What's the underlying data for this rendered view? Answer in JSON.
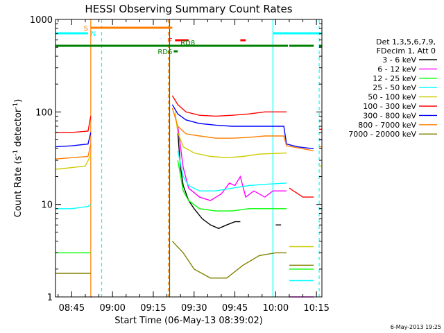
{
  "chart_data": {
    "type": "line",
    "title": "HESSI Observing Summary Count Rates",
    "xlabel": "Start Time (06-May-13 08:39:02)",
    "ylabel_main": "Count Rate (s",
    "ylabel_sup1": "-1",
    "ylabel_mid": " detector",
    "ylabel_sup2": "-1",
    "ylabel_end": ")",
    "yscale": "log",
    "ylim": [
      1,
      1000
    ],
    "xlim": [
      "08:39:02",
      "10:17:00"
    ],
    "xticks": [
      "08:45",
      "09:00",
      "09:15",
      "09:30",
      "09:45",
      "10:00",
      "10:15"
    ],
    "yticks": [
      "1",
      "10",
      "100",
      "1000"
    ],
    "timestamp": "6-May-2013 19:25",
    "legend_header": [
      "Det 1,3,5,6,7,9,",
      "FDecim 1, Att 0"
    ],
    "flags": [
      {
        "label": "S",
        "color": "#ff7f00",
        "segments": [
          [
            "08:52:00",
            "09:22:00"
          ]
        ]
      },
      {
        "label": "N",
        "color": "#00ffff",
        "segments": [
          [
            "08:39:02",
            "08:51:00"
          ],
          [
            "09:59:00",
            "10:17:00"
          ]
        ]
      },
      {
        "label": "F",
        "color": "#ff0000",
        "segments": [
          [
            "09:23:00",
            "09:28:00"
          ],
          [
            "09:47:00",
            "09:49:00"
          ]
        ]
      },
      {
        "label": "RD8",
        "color": "#008000",
        "segments": [
          [
            "08:39:02",
            "10:04:30"
          ],
          [
            "10:05:00",
            "10:14:00"
          ],
          [
            "10:16:00",
            "10:17:00"
          ]
        ]
      },
      {
        "label": "RD6",
        "color": "#008000",
        "segments": [
          [
            "09:22:30",
            "09:24:00"
          ]
        ]
      }
    ],
    "vlines_solid": [
      {
        "time": "08:39:02",
        "color": "#00ffff"
      },
      {
        "time": "09:59:00",
        "color": "#00ffff"
      },
      {
        "time": "08:52:00",
        "color": "#ff7f00"
      },
      {
        "time": "09:21:00",
        "color": "#008000"
      }
    ],
    "vlines_dashed": [
      {
        "time": "08:56:00",
        "color": "#00ffff"
      },
      {
        "time": "09:20:30",
        "color": "#ff7f00"
      },
      {
        "time": "10:16:00",
        "color": "#00ffff"
      }
    ],
    "series": [
      {
        "name": "3 - 6 keV",
        "color": "#000000",
        "segments": [
          [
            [
              "09:24:00",
              60
            ],
            [
              "09:25:00",
              25
            ],
            [
              "09:26:00",
              16
            ],
            [
              "09:28:00",
              11
            ],
            [
              "09:30:00",
              9
            ],
            [
              "09:33:00",
              7
            ],
            [
              "09:36:00",
              6
            ],
            [
              "09:39:00",
              5.5
            ],
            [
              "09:42:00",
              6
            ],
            [
              "09:45:00",
              6.5
            ],
            [
              "09:47:00",
              6.5
            ]
          ],
          [
            [
              "10:00:00",
              6
            ],
            [
              "10:02:00",
              6
            ]
          ]
        ]
      },
      {
        "name": "6 - 12 keV",
        "color": "#ff00ff",
        "segments": [
          [
            [
              "08:52:00",
              1.0
            ],
            [
              "08:52:30",
              1.0
            ]
          ],
          [
            [
              "09:24:00",
              70
            ],
            [
              "09:26:00",
              25
            ],
            [
              "09:28:00",
              15
            ],
            [
              "09:32:00",
              12
            ],
            [
              "09:36:00",
              11
            ],
            [
              "09:40:00",
              13
            ],
            [
              "09:43:00",
              17
            ],
            [
              "09:45:00",
              16
            ],
            [
              "09:47:00",
              20
            ],
            [
              "09:49:00",
              12
            ],
            [
              "09:52:00",
              14
            ],
            [
              "09:56:00",
              12
            ],
            [
              "09:59:00",
              14
            ],
            [
              "10:04:00",
              14
            ]
          ],
          [
            [
              "10:05:00",
              1.0
            ],
            [
              "10:14:00",
              1.0
            ]
          ]
        ]
      },
      {
        "name": "12 - 25 keV",
        "color": "#00ff00",
        "segments": [
          [
            [
              "08:39:02",
              3.0
            ],
            [
              "08:47:00",
              3.0
            ],
            [
              "08:52:00",
              3.0
            ]
          ],
          [
            [
              "09:24:00",
              30
            ],
            [
              "09:26:00",
              14
            ],
            [
              "09:28:00",
              11
            ],
            [
              "09:32:00",
              9
            ],
            [
              "09:38:00",
              8.5
            ],
            [
              "09:44:00",
              8.5
            ],
            [
              "09:50:00",
              9
            ],
            [
              "09:56:00",
              9
            ],
            [
              "10:04:00",
              9
            ]
          ],
          [
            [
              "10:05:00",
              2.0
            ],
            [
              "10:14:00",
              2.0
            ]
          ]
        ]
      },
      {
        "name": "25 - 50 keV",
        "color": "#00ffff",
        "segments": [
          [
            [
              "08:39:02",
              9
            ],
            [
              "08:45:00",
              9
            ],
            [
              "08:51:00",
              9.5
            ],
            [
              "08:52:00",
              10
            ]
          ],
          [
            [
              "09:24:00",
              38
            ],
            [
              "09:26:00",
              20
            ],
            [
              "09:28:00",
              16
            ],
            [
              "09:32:00",
              14
            ],
            [
              "09:38:00",
              14
            ],
            [
              "09:44:00",
              15
            ],
            [
              "09:50:00",
              16
            ],
            [
              "09:56:00",
              16.5
            ],
            [
              "10:04:00",
              17
            ]
          ],
          [
            [
              "10:05:00",
              1.5
            ],
            [
              "10:10:00",
              1.5
            ],
            [
              "10:14:00",
              1.5
            ]
          ],
          [
            [
              "10:16:00",
              9
            ],
            [
              "10:17:00",
              9
            ]
          ]
        ]
      },
      {
        "name": "50 - 100 keV",
        "color": "#cccc00",
        "segments": [
          [
            [
              "08:39:02",
              24
            ],
            [
              "08:45:00",
              25
            ],
            [
              "08:50:00",
              26
            ],
            [
              "08:52:00",
              34
            ]
          ],
          [
            [
              "09:23:00",
              100
            ],
            [
              "09:24:00",
              60
            ],
            [
              "09:26:00",
              42
            ],
            [
              "09:30:00",
              36
            ],
            [
              "09:36:00",
              33
            ],
            [
              "09:42:00",
              32
            ],
            [
              "09:48:00",
              33
            ],
            [
              "09:54:00",
              35
            ],
            [
              "10:04:00",
              36
            ]
          ],
          [
            [
              "10:05:00",
              3.5
            ],
            [
              "10:14:00",
              3.5
            ]
          ],
          [
            [
              "10:16:00",
              26
            ],
            [
              "10:17:00",
              26
            ]
          ]
        ]
      },
      {
        "name": "100 - 300 keV",
        "color": "#ff0000",
        "segments": [
          [
            [
              "08:39:02",
              60
            ],
            [
              "08:45:00",
              60
            ],
            [
              "08:51:00",
              62
            ],
            [
              "08:52:00",
              90
            ]
          ],
          [
            [
              "09:22:00",
              150
            ],
            [
              "09:24:00",
              120
            ],
            [
              "09:27:00",
              100
            ],
            [
              "09:32:00",
              92
            ],
            [
              "09:38:00",
              90
            ],
            [
              "09:44:00",
              92
            ],
            [
              "09:50:00",
              95
            ],
            [
              "09:56:00",
              100
            ],
            [
              "10:04:00",
              100
            ]
          ],
          [
            [
              "10:05:00",
              15
            ],
            [
              "10:10:00",
              12
            ],
            [
              "10:14:00",
              12
            ]
          ],
          [
            [
              "10:16:00",
              65
            ],
            [
              "10:17:00",
              65
            ]
          ]
        ]
      },
      {
        "name": "300 - 800 keV",
        "color": "#0000ff",
        "segments": [
          [
            [
              "08:39:02",
              42
            ],
            [
              "08:45:00",
              43
            ],
            [
              "08:51:00",
              45
            ],
            [
              "08:52:00",
              60
            ]
          ],
          [
            [
              "09:22:00",
              120
            ],
            [
              "09:24:00",
              95
            ],
            [
              "09:27:00",
              82
            ],
            [
              "09:32:00",
              75
            ],
            [
              "09:38:00",
              72
            ],
            [
              "09:44:00",
              70
            ],
            [
              "09:50:00",
              70
            ],
            [
              "09:56:00",
              70
            ],
            [
              "10:03:00",
              70
            ],
            [
              "10:04:00",
              45
            ],
            [
              "10:08:00",
              42
            ],
            [
              "10:14:00",
              40
            ]
          ],
          [
            [
              "10:16:00",
              50
            ],
            [
              "10:17:00",
              50
            ]
          ]
        ]
      },
      {
        "name": "800 - 7000 keV",
        "color": "#ff7f00",
        "segments": [
          [
            [
              "08:39:02",
              31
            ],
            [
              "08:45:00",
              32
            ],
            [
              "08:51:00",
              33
            ],
            [
              "08:52:00",
              45
            ]
          ],
          [
            [
              "09:22:00",
              110
            ],
            [
              "09:24:00",
              70
            ],
            [
              "09:27:00",
              58
            ],
            [
              "09:32:00",
              55
            ],
            [
              "09:38:00",
              52
            ],
            [
              "09:44:00",
              52
            ],
            [
              "09:50:00",
              53
            ],
            [
              "09:56:00",
              55
            ],
            [
              "10:03:00",
              55
            ],
            [
              "10:04:00",
              43
            ],
            [
              "10:10:00",
              40
            ],
            [
              "10:14:00",
              38
            ]
          ],
          [
            [
              "10:16:00",
              42
            ],
            [
              "10:17:00",
              42
            ]
          ]
        ]
      },
      {
        "name": "7000 - 20000 keV",
        "color": "#808000",
        "segments": [
          [
            [
              "08:39:02",
              1.8
            ],
            [
              "08:45:00",
              1.8
            ],
            [
              "08:52:00",
              1.8
            ]
          ],
          [
            [
              "09:22:00",
              4.0
            ],
            [
              "09:26:00",
              3.0
            ],
            [
              "09:30:00",
              2.0
            ],
            [
              "09:36:00",
              1.6
            ],
            [
              "09:42:00",
              1.6
            ],
            [
              "09:48:00",
              2.2
            ],
            [
              "09:54:00",
              2.8
            ],
            [
              "10:00:00",
              3.0
            ],
            [
              "10:04:00",
              3.0
            ]
          ],
          [
            [
              "10:05:00",
              2.2
            ],
            [
              "10:14:00",
              2.2
            ]
          ]
        ]
      }
    ]
  }
}
